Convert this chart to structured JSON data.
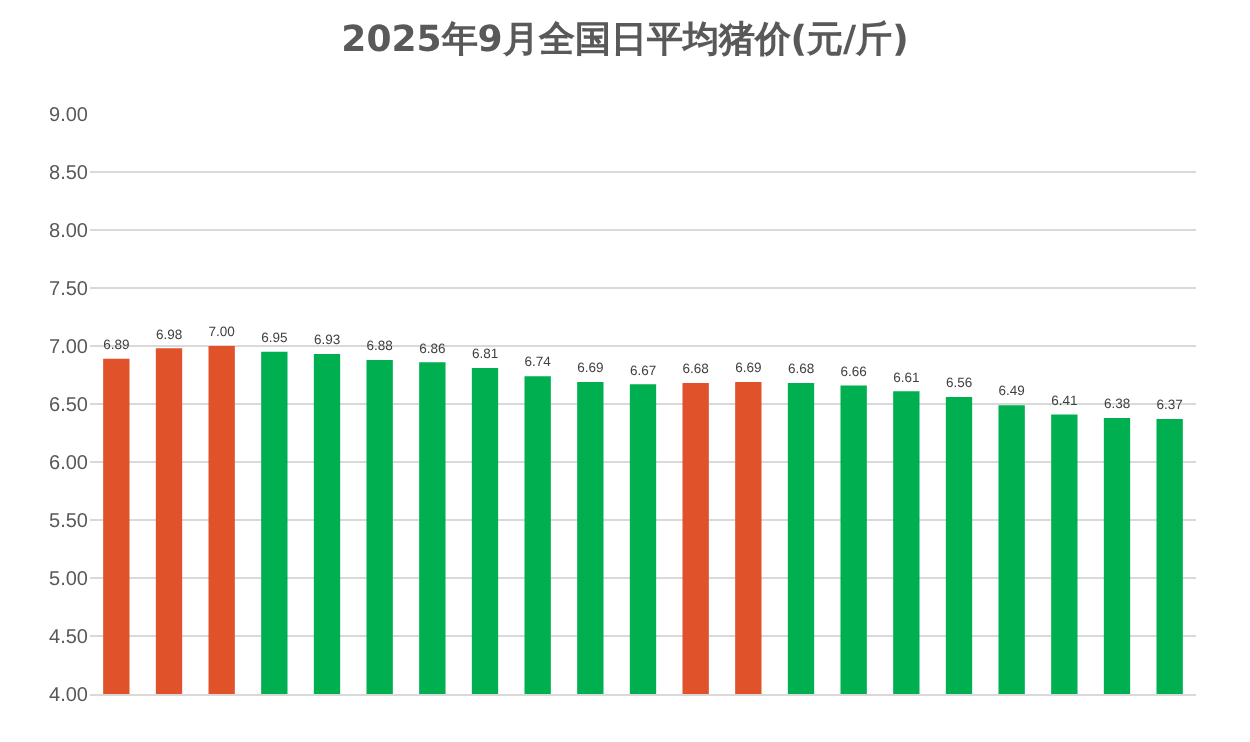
{
  "chart_data": {
    "type": "bar",
    "title": "2025年9月全国日平均猪价(元/斤)",
    "categories": [
      null,
      null,
      null,
      null,
      null,
      null,
      null,
      null,
      null,
      null,
      null,
      null,
      null,
      null,
      null,
      null,
      null,
      null,
      null,
      null,
      null
    ],
    "values": [
      6.89,
      6.98,
      7.0,
      6.95,
      6.93,
      6.88,
      6.86,
      6.81,
      6.74,
      6.69,
      6.67,
      6.68,
      6.69,
      6.68,
      6.66,
      6.61,
      6.56,
      6.49,
      6.41,
      6.38,
      6.37
    ],
    "colors": [
      "#e0522a",
      "#e0522a",
      "#e0522a",
      "#00b050",
      "#00b050",
      "#00b050",
      "#00b050",
      "#00b050",
      "#00b050",
      "#00b050",
      "#00b050",
      "#e0522a",
      "#e0522a",
      "#00b050",
      "#00b050",
      "#00b050",
      "#00b050",
      "#00b050",
      "#00b050",
      "#00b050",
      "#00b050"
    ],
    "value_labels": [
      "6.89",
      "6.98",
      "7.00",
      "6.95",
      "6.93",
      "6.88",
      "6.86",
      "6.81",
      "6.74",
      "6.69",
      "6.67",
      "6.68",
      "6.69",
      "6.68",
      "6.66",
      "6.61",
      "6.56",
      "6.49",
      "6.41",
      "6.38",
      "6.37"
    ],
    "ylim": [
      4,
      9
    ],
    "yticks": [
      {
        "value": 4,
        "label": "4.00"
      },
      {
        "value": 4.5,
        "label": "4.50"
      },
      {
        "value": 5,
        "label": "5.00"
      },
      {
        "value": 5.5,
        "label": "5.50"
      },
      {
        "value": 6,
        "label": "6.00"
      },
      {
        "value": 6.5,
        "label": "6.50"
      },
      {
        "value": 7,
        "label": "7.00"
      },
      {
        "value": 7.5,
        "label": "7.50"
      },
      {
        "value": 8,
        "label": "8.00"
      },
      {
        "value": 8.5,
        "label": "8.50"
      },
      {
        "value": 9,
        "label": "9.00"
      }
    ],
    "grid": "y",
    "tick_labels": "y"
  }
}
